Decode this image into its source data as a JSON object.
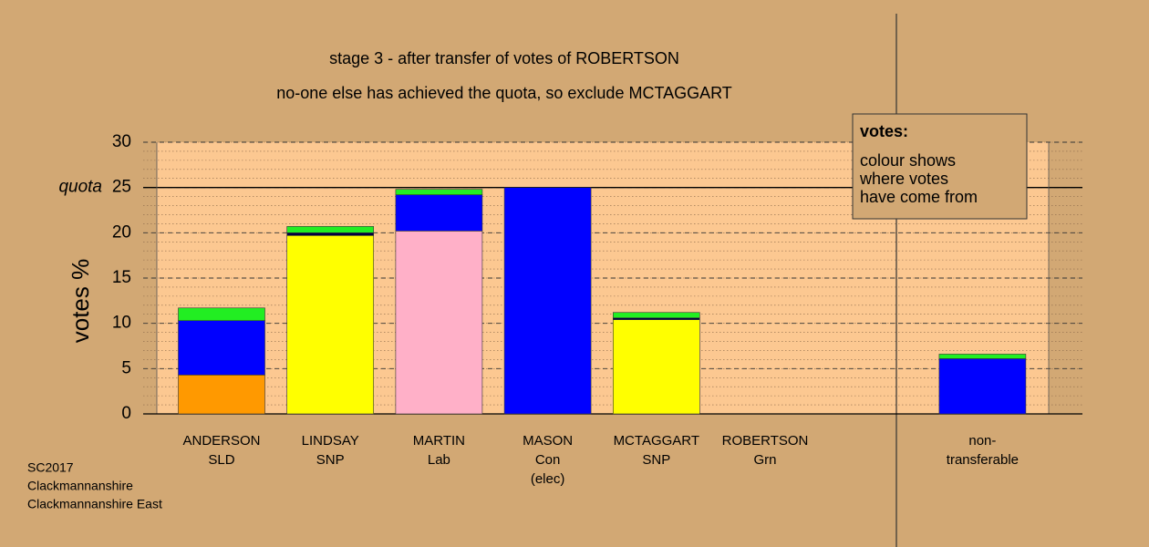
{
  "chart_data": {
    "type": "stacked-bar",
    "title": "stage 3 - after transfer of votes of ROBERTSON",
    "subtitle": "no-one else has achieved the quota, so exclude MCTAGGART",
    "y_label": "votes %",
    "quota_label": "quota",
    "quota": 25,
    "categories": [
      [
        "ANDERSON",
        "SLD"
      ],
      [
        "LINDSAY",
        "SNP"
      ],
      [
        "MARTIN",
        "Lab"
      ],
      [
        "MASON",
        "Con",
        "(elec)"
      ],
      [
        "MCTAGGART",
        "SNP"
      ],
      [
        "ROBERTSON",
        "Grn"
      ],
      null,
      [
        "non-",
        "transferable"
      ]
    ],
    "series": [
      {
        "color": "#ff9900",
        "values": [
          4.3,
          0,
          0,
          0,
          0,
          0,
          null,
          0
        ]
      },
      {
        "color": "#ffff00",
        "values": [
          0,
          19.7,
          0,
          0,
          10.4,
          0,
          null,
          0
        ]
      },
      {
        "color": "#ffb0c8",
        "values": [
          0,
          0,
          20.2,
          0,
          0,
          0,
          null,
          0
        ]
      },
      {
        "color": "#0000ff",
        "values": [
          6.0,
          0,
          4.0,
          25.0,
          0,
          0,
          null,
          6.1
        ]
      },
      {
        "color": "#000040",
        "values": [
          0,
          0.3,
          0,
          0,
          0.2,
          0,
          null,
          0
        ]
      },
      {
        "color": "#22ee22",
        "values": [
          1.4,
          0.7,
          0.6,
          0,
          0.6,
          0,
          null,
          0.5
        ]
      }
    ],
    "ylim": [
      0,
      30
    ],
    "yticks": [
      0,
      5,
      10,
      15,
      20,
      25,
      30
    ],
    "grid": true,
    "legend_title": "votes:",
    "legend_text": [
      "colour shows",
      "where votes",
      "have come from"
    ],
    "footer": [
      "SC2017",
      "Clackmannanshire",
      "Clackmannanshire East"
    ]
  }
}
